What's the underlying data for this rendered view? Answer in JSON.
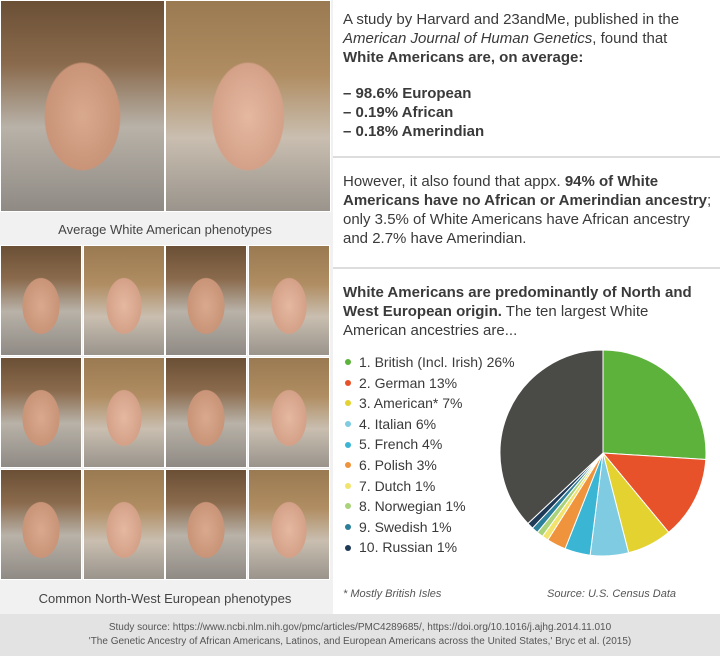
{
  "photos": {
    "caption_top": "Average White American phenotypes",
    "caption_bottom": "Common North-West European phenotypes"
  },
  "study": {
    "intro": [
      "A study by Harvard and 23andMe, published in the ",
      "American Journal of Human Genetics",
      ", found that ",
      "White Americans are, on average:"
    ],
    "list": [
      "– 98.6% European",
      "– 0.19% African",
      "– 0.18% Amerindian"
    ]
  },
  "finding": [
    "However, it also found that appx. ",
    "94% of White Americans have no African or Amerindian ancestry",
    "; only 3.5% of White Americans have African ancestry and 2.7% have Amerindian."
  ],
  "ancestry": {
    "heading": "White Americans are predominantly of North and West European origin.",
    "lead": " The ten largest White American ancestries are..."
  },
  "chart_data": {
    "type": "pie",
    "categories": [
      "1. British (Incl. Irish) 26%",
      "2. German 13%",
      "3. American* 7%",
      "4. Italian 6%",
      "5. French 4%",
      "6. Polish 3%",
      "7. Dutch 1%",
      "8. Norwegian 1%",
      "9. Swedish 1%",
      "10. Russian 1%",
      null
    ],
    "values": [
      26,
      13,
      7,
      6,
      4,
      3,
      1,
      1,
      1,
      1,
      37
    ],
    "colors": [
      "#5cb23b",
      "#e8522b",
      "#e3d22f",
      "#7fcbe2",
      "#3ab5d4",
      "#ef943c",
      "#f2e36c",
      "#a9d27b",
      "#2c7f9a",
      "#1f3a57",
      "#4a4a47"
    ],
    "note": "* Mostly British Isles",
    "source": "Source: U.S. Census Data"
  },
  "footer": [
    "Study source: https://www.ncbi.nlm.nih.gov/pmc/articles/PMC4289685/, https://doi.org/10.1016/j.ajhg.2014.11.010",
    "'The Genetic Ancestry of African Americans, Latinos, and European Americans across the United States,' Bryc et al. (2015)"
  ]
}
